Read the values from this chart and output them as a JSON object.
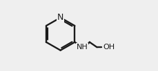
{
  "bg_color": "#efefef",
  "line_color": "#1a1a1a",
  "line_width": 1.7,
  "font_size_atom": 8.0,
  "xlim": [
    0.0,
    1.0
  ],
  "ylim": [
    0.05,
    0.95
  ]
}
